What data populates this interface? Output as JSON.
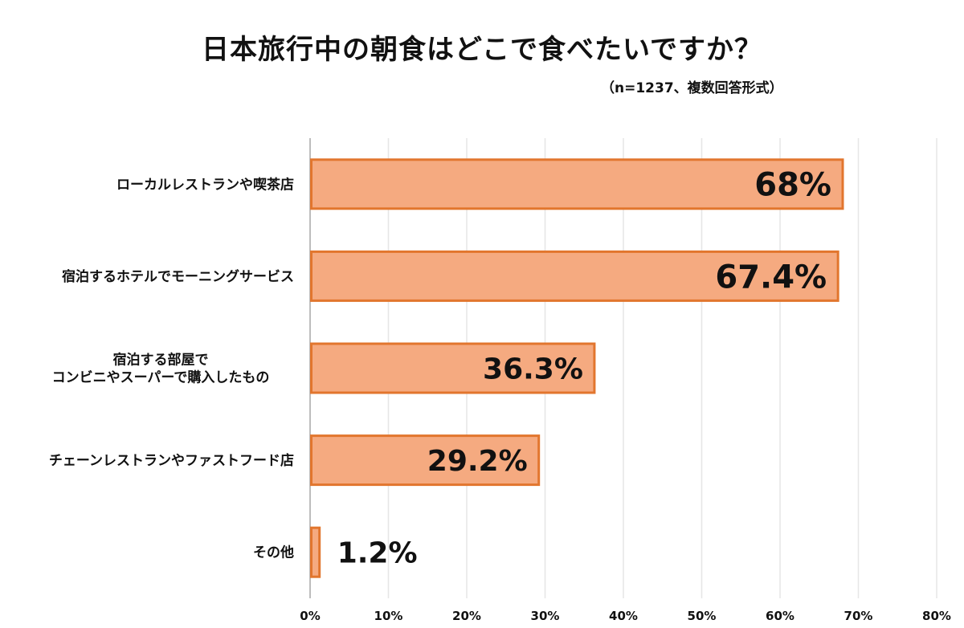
{
  "chart_data": {
    "type": "bar",
    "orientation": "horizontal",
    "title": "日本旅行中の朝食はどこで食べたいですか？",
    "subtitle": "（n=1237、複数回答形式）",
    "categories": [
      [
        "ローカルレストランや喫茶店"
      ],
      [
        "宿泊するホテルでモーニングサービス"
      ],
      [
        "宿泊する部屋で",
        "コンビニやスーパーで購入したもの"
      ],
      [
        "チェーンレストランやファストフード店"
      ],
      [
        "その他"
      ]
    ],
    "values": [
      68,
      67.4,
      36.3,
      29.2,
      1.2
    ],
    "data_labels": [
      "68%",
      "67.4%",
      "36.3%",
      "29.2%",
      "1.2%"
    ],
    "x_ticks": [
      "0%",
      "10%",
      "20%",
      "30%",
      "40%",
      "50%",
      "60%",
      "70%",
      "80%"
    ],
    "xlim": [
      0,
      80
    ],
    "grid": true,
    "legend": "none",
    "colors": {
      "bar_fill": "#f5aa80",
      "bar_stroke": "#e2762e",
      "grid": "#e6e6e6",
      "axis": "#bdbdbd"
    }
  }
}
